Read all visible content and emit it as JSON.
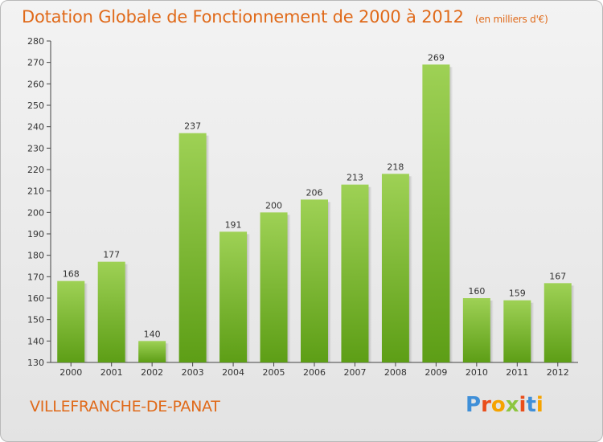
{
  "header": {
    "title": "Dotation Globale de Fonctionnement de 2000 à 2012",
    "subtitle": "(en milliers d'€)"
  },
  "commune": "VILLEFRANCHE-DE-PANAT",
  "logo": {
    "letters": [
      "P",
      "r",
      "o",
      "x",
      "i",
      "t",
      "i"
    ],
    "colors": [
      "#3f8fd8",
      "#e94e1b",
      "#f5a300",
      "#8dc63f",
      "#e94e1b",
      "#3f8fd8",
      "#f5a300"
    ]
  },
  "colors": {
    "bar_top": "#9ed155",
    "bar_bottom": "#5d9e16",
    "accent": "#e06a1a"
  },
  "chart_data": {
    "type": "bar",
    "categories": [
      "2000",
      "2001",
      "2002",
      "2003",
      "2004",
      "2005",
      "2006",
      "2007",
      "2008",
      "2009",
      "2010",
      "2011",
      "2012"
    ],
    "values": [
      168,
      177,
      140,
      237,
      191,
      200,
      206,
      213,
      218,
      269,
      160,
      159,
      167
    ],
    "ylim": [
      130,
      280
    ],
    "yticks": [
      130,
      140,
      150,
      160,
      170,
      180,
      190,
      200,
      210,
      220,
      230,
      240,
      250,
      260,
      270,
      280
    ],
    "grid": false,
    "title": "Dotation Globale de Fonctionnement de 2000 à 2012",
    "ylabel": "",
    "xlabel": ""
  }
}
